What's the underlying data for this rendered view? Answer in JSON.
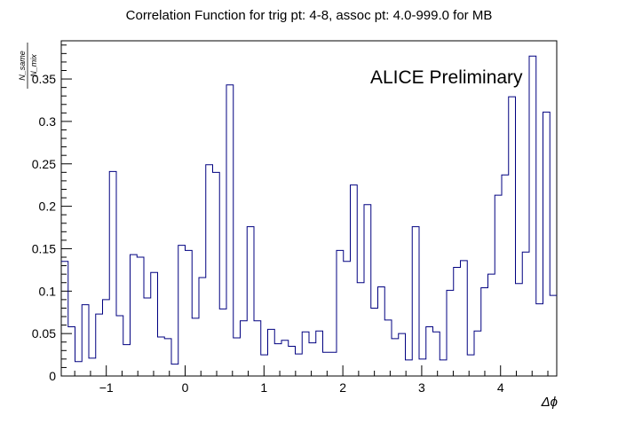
{
  "chart_data": {
    "type": "histogram",
    "title": "Correlation Function for trig pt: 4-8, assoc pt: 4.0-999.0 for MB",
    "annotation": "ALICE Preliminary",
    "xlabel": "Δϕ",
    "ylabel": {
      "numerator": "N_same",
      "denominator": "N_mix"
    },
    "xlim": [
      -1.5708,
      4.7124
    ],
    "ylim": [
      0,
      0.395
    ],
    "x_ticks": [
      -1,
      0,
      1,
      2,
      3,
      4
    ],
    "x_tick_labels": [
      "−1",
      "0",
      "1",
      "2",
      "3",
      "4"
    ],
    "y_ticks": [
      0.05,
      0.1,
      0.15,
      0.2,
      0.25,
      0.3,
      0.35
    ],
    "y_tick_labels": [
      "0.05",
      "0.1",
      "0.15",
      "0.2",
      "0.25",
      "0.3",
      "0.35"
    ],
    "bin_count": 72,
    "line_color": "#000080",
    "values": [
      0.135,
      0.058,
      0.017,
      0.084,
      0.021,
      0.073,
      0.09,
      0.241,
      0.071,
      0.037,
      0.143,
      0.14,
      0.092,
      0.122,
      0.046,
      0.044,
      0.014,
      0.154,
      0.148,
      0.068,
      0.116,
      0.249,
      0.24,
      0.079,
      0.343,
      0.045,
      0.065,
      0.176,
      0.065,
      0.025,
      0.055,
      0.038,
      0.042,
      0.035,
      0.026,
      0.052,
      0.039,
      0.053,
      0.028,
      0.028,
      0.148,
      0.135,
      0.225,
      0.11,
      0.202,
      0.08,
      0.105,
      0.066,
      0.044,
      0.05,
      0.019,
      0.176,
      0.02,
      0.058,
      0.052,
      0.019,
      0.101,
      0.128,
      0.136,
      0.025,
      0.053,
      0.104,
      0.12,
      0.213,
      0.237,
      0.329,
      0.109,
      0.146,
      0.377,
      0.085,
      0.311,
      0.095
    ]
  }
}
